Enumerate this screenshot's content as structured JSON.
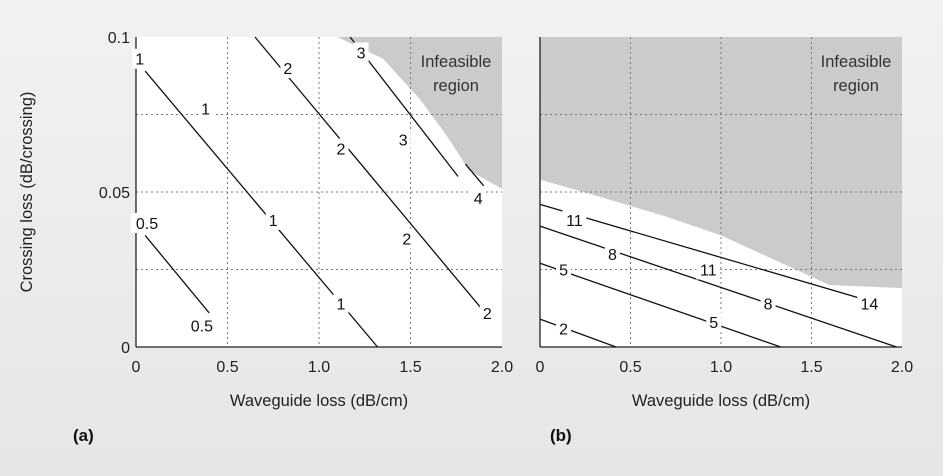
{
  "chart_data": [
    {
      "type": "contour",
      "panel_label": "(a)",
      "xlabel": "Waveguide loss (dB/cm)",
      "ylabel": "Crossing loss (dB/crossing)",
      "xlim": [
        0,
        2.0
      ],
      "ylim": [
        0,
        0.1
      ],
      "x_ticks": [
        "0",
        "0.5",
        "1.0",
        "1.5",
        "2.0"
      ],
      "y_ticks": [
        "0",
        "0.05",
        "0.1"
      ],
      "grid": true,
      "infeasible_label_line1": "Infeasible",
      "infeasible_label_line2": "region",
      "infeasible_boundary": [
        [
          1.1,
          0.1
        ],
        [
          1.35,
          0.093
        ],
        [
          1.55,
          0.08
        ],
        [
          1.7,
          0.068
        ],
        [
          1.82,
          0.057
        ],
        [
          2.0,
          0.051
        ]
      ],
      "contours": [
        {
          "level": "0.5",
          "points": [
            [
              0.05,
              0.036
            ],
            [
              0.4,
              0.011
            ]
          ],
          "labels": [
            {
              "text": "0.5",
              "x": 0.06,
              "y": 0.04
            },
            {
              "text": "0.5",
              "x": 0.36,
              "y": 0.007
            }
          ]
        },
        {
          "level": "1",
          "points": [
            [
              0.05,
              0.089
            ],
            [
              1.32,
              0
            ]
          ],
          "labels": [
            {
              "text": "1",
              "x": 0.02,
              "y": 0.093
            },
            {
              "text": "1",
              "x": 0.38,
              "y": 0.077
            },
            {
              "text": "1",
              "x": 0.75,
              "y": 0.041
            },
            {
              "text": "1",
              "x": 1.12,
              "y": 0.014
            }
          ]
        },
        {
          "level": "2",
          "points": [
            [
              0.65,
              0.1
            ],
            [
              1.95,
              0.008
            ]
          ],
          "labels": [
            {
              "text": "2",
              "x": 0.83,
              "y": 0.09
            },
            {
              "text": "2",
              "x": 1.12,
              "y": 0.064
            },
            {
              "text": "2",
              "x": 1.48,
              "y": 0.035
            },
            {
              "text": "2",
              "x": 1.92,
              "y": 0.011
            }
          ]
        },
        {
          "level": "3",
          "points": [
            [
              1.17,
              0.1
            ],
            [
              1.76,
              0.055
            ]
          ],
          "labels": [
            {
              "text": "3",
              "x": 1.23,
              "y": 0.095
            },
            {
              "text": "3",
              "x": 1.46,
              "y": 0.067
            }
          ]
        },
        {
          "level": "4",
          "points": [
            [
              1.8,
              0.059
            ],
            [
              1.9,
              0.052
            ]
          ],
          "labels": [
            {
              "text": "4",
              "x": 1.87,
              "y": 0.048
            }
          ]
        }
      ]
    },
    {
      "type": "contour",
      "panel_label": "(b)",
      "xlabel": "Waveguide loss (dB/cm)",
      "xlim": [
        0,
        2.0
      ],
      "ylim": [
        0,
        0.1
      ],
      "x_ticks": [
        "0",
        "0.5",
        "1.0",
        "1.5",
        "2.0"
      ],
      "grid": true,
      "infeasible_label_line1": "Infeasible",
      "infeasible_label_line2": "region",
      "infeasible_boundary": [
        [
          0,
          0.054
        ],
        [
          0.3,
          0.049
        ],
        [
          0.7,
          0.042
        ],
        [
          1.0,
          0.036
        ],
        [
          1.3,
          0.028
        ],
        [
          1.6,
          0.02
        ],
        [
          2.0,
          0.019
        ]
      ],
      "contours": [
        {
          "level": "2",
          "points": [
            [
              0,
              0.009
            ],
            [
              0.42,
              0
            ]
          ],
          "labels": [
            {
              "text": "2",
              "x": 0.13,
              "y": 0.006
            }
          ]
        },
        {
          "level": "5",
          "points": [
            [
              0,
              0.027
            ],
            [
              1.33,
              0
            ]
          ],
          "labels": [
            {
              "text": "5",
              "x": 0.13,
              "y": 0.025
            },
            {
              "text": "5",
              "x": 0.96,
              "y": 0.008
            }
          ]
        },
        {
          "level": "8",
          "points": [
            [
              0,
              0.039
            ],
            [
              1.97,
              0
            ]
          ],
          "labels": [
            {
              "text": "8",
              "x": 0.4,
              "y": 0.03
            },
            {
              "text": "8",
              "x": 1.26,
              "y": 0.014
            }
          ]
        },
        {
          "level": "11",
          "points": [
            [
              0,
              0.046
            ],
            [
              1.87,
              0.014
            ]
          ],
          "labels": [
            {
              "text": "11",
              "x": 0.19,
              "y": 0.041
            },
            {
              "text": "11",
              "x": 0.93,
              "y": 0.025
            }
          ]
        },
        {
          "level": "14",
          "points": [],
          "labels": [
            {
              "text": "14",
              "x": 1.82,
              "y": 0.014
            }
          ]
        }
      ]
    }
  ]
}
